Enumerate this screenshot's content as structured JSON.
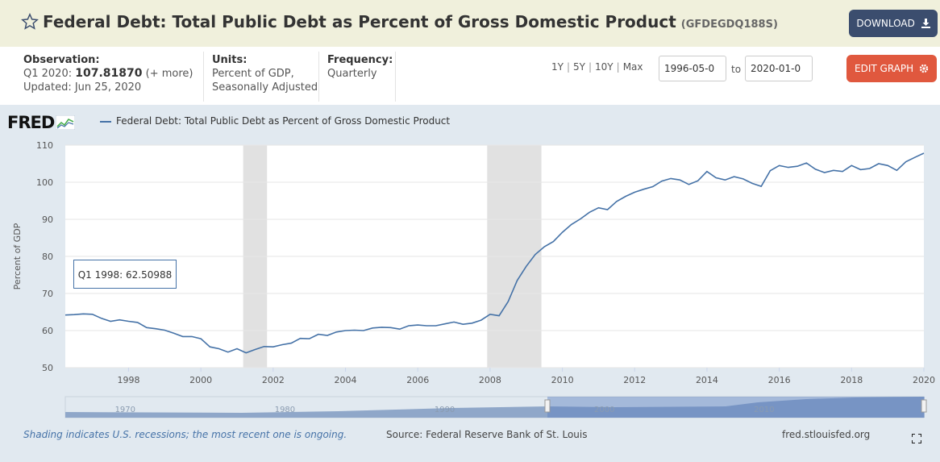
{
  "header": {
    "title": "Federal Debt: Total Public Debt as Percent of Gross Domestic Product",
    "series_id": "(GFDEGDQ188S)",
    "download_label": "DOWNLOAD"
  },
  "meta": {
    "observation_label": "Observation:",
    "observation_period": "Q1 2020:",
    "observation_value": "107.81870",
    "observation_more": "(+ more)",
    "updated": "Updated: Jun 25, 2020",
    "units_label": "Units:",
    "units_line1": "Percent of GDP,",
    "units_line2": "Seasonally Adjusted",
    "frequency_label": "Frequency:",
    "frequency_value": "Quarterly"
  },
  "controls": {
    "ranges": [
      "1Y",
      "5Y",
      "10Y",
      "Max"
    ],
    "start_date": "1996-05-0",
    "to_label": "to",
    "end_date": "2020-01-0",
    "edit_label": "EDIT GRAPH"
  },
  "chart_data": {
    "type": "line",
    "logo": "FRED",
    "series": [
      {
        "name": "Federal Debt: Total Public Debt as Percent of Gross Domestic Product",
        "x": [
          1996.25,
          1996.5,
          1996.75,
          1997.0,
          1997.25,
          1997.5,
          1997.75,
          1998.0,
          1998.25,
          1998.5,
          1998.75,
          1999.0,
          1999.25,
          1999.5,
          1999.75,
          2000.0,
          2000.25,
          2000.5,
          2000.75,
          2001.0,
          2001.25,
          2001.5,
          2001.75,
          2002.0,
          2002.25,
          2002.5,
          2002.75,
          2003.0,
          2003.25,
          2003.5,
          2003.75,
          2004.0,
          2004.25,
          2004.5,
          2004.75,
          2005.0,
          2005.25,
          2005.5,
          2005.75,
          2006.0,
          2006.25,
          2006.5,
          2006.75,
          2007.0,
          2007.25,
          2007.5,
          2007.75,
          2008.0,
          2008.25,
          2008.5,
          2008.75,
          2009.0,
          2009.25,
          2009.5,
          2009.75,
          2010.0,
          2010.25,
          2010.5,
          2010.75,
          2011.0,
          2011.25,
          2011.5,
          2011.75,
          2012.0,
          2012.25,
          2012.5,
          2012.75,
          2013.0,
          2013.25,
          2013.5,
          2013.75,
          2014.0,
          2014.25,
          2014.5,
          2014.75,
          2015.0,
          2015.25,
          2015.5,
          2015.75,
          2016.0,
          2016.25,
          2016.5,
          2016.75,
          2017.0,
          2017.25,
          2017.5,
          2017.75,
          2018.0,
          2018.25,
          2018.5,
          2018.75,
          2019.0,
          2019.25,
          2019.5,
          2019.75,
          2020.0
        ],
        "values": [
          64.2,
          64.3,
          64.5,
          64.4,
          63.3,
          62.5,
          62.9,
          62.51,
          62.2,
          60.8,
          60.5,
          60.1,
          59.3,
          58.4,
          58.4,
          57.8,
          55.6,
          55.1,
          54.2,
          55.1,
          54.0,
          54.9,
          55.7,
          55.6,
          56.2,
          56.6,
          57.9,
          57.8,
          59.0,
          58.7,
          59.6,
          60.0,
          60.1,
          60.0,
          60.7,
          60.9,
          60.8,
          60.4,
          61.3,
          61.5,
          61.3,
          61.3,
          61.8,
          62.3,
          61.7,
          62.0,
          62.8,
          64.4,
          64.0,
          67.8,
          73.5,
          77.3,
          80.5,
          82.6,
          84.0,
          86.5,
          88.6,
          90.1,
          91.9,
          93.1,
          92.6,
          94.8,
          96.2,
          97.3,
          98.1,
          98.8,
          100.3,
          101.0,
          100.6,
          99.4,
          100.4,
          102.9,
          101.2,
          100.6,
          101.5,
          100.9,
          99.7,
          98.9,
          103.1,
          104.5,
          104.0,
          104.3,
          105.2,
          103.5,
          102.6,
          103.2,
          102.9,
          104.5,
          103.4,
          103.7,
          105.0,
          104.5,
          103.2,
          105.5,
          106.7,
          107.8187
        ]
      }
    ],
    "ylabel": "Percent of GDP",
    "xlim": [
      1996.25,
      2020.0
    ],
    "ylim": [
      50,
      110
    ],
    "y_ticks": [
      50,
      60,
      70,
      80,
      90,
      100,
      110
    ],
    "x_ticks": [
      1998,
      2000,
      2002,
      2004,
      2006,
      2008,
      2010,
      2012,
      2014,
      2016,
      2018,
      2020
    ],
    "recessions": [
      [
        2001.17,
        2001.83
      ],
      [
        2007.92,
        2009.42
      ]
    ],
    "tooltip": {
      "label": "Q1 1998:",
      "value": "62.50988"
    },
    "navigator_ticks": [
      1970,
      1980,
      1990,
      2000,
      2010
    ],
    "legend_position": "top-left",
    "grid": true
  },
  "footer": {
    "recession_note": "Shading indicates U.S. recessions; the most recent one is ongoing.",
    "source": "Source: Federal Reserve Bank of St. Louis",
    "site": "fred.stlouisfed.org"
  }
}
